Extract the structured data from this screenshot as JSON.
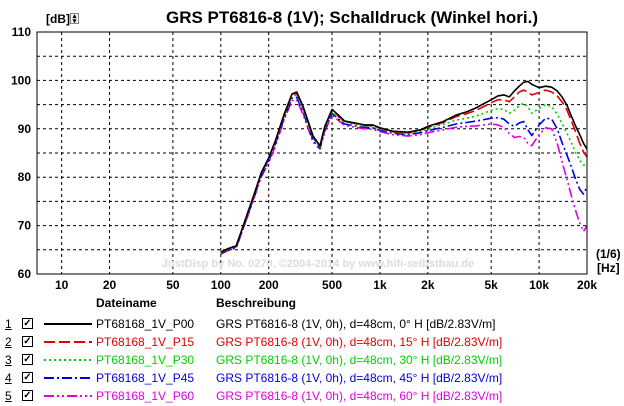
{
  "chart_data": {
    "type": "line",
    "title": "GRS PT6816-8 (1V); Schalldruck (Winkel hori.)",
    "ylabel": "[dB]",
    "xunit_top": "(1/6)",
    "xunit_bottom": "[Hz]",
    "x_scale": "log",
    "xlim": [
      7,
      20000
    ],
    "ylim": [
      60,
      110
    ],
    "y_ticks": [
      60,
      70,
      80,
      90,
      100,
      110
    ],
    "x_ticks": [
      {
        "v": 10,
        "t": "10"
      },
      {
        "v": 20,
        "t": "20"
      },
      {
        "v": 50,
        "t": "50"
      },
      {
        "v": 100,
        "t": "100"
      },
      {
        "v": 200,
        "t": "200"
      },
      {
        "v": 500,
        "t": "500"
      },
      {
        "v": 1000,
        "t": "1k"
      },
      {
        "v": 2000,
        "t": "2k"
      },
      {
        "v": 5000,
        "t": "5k"
      },
      {
        "v": 10000,
        "t": "10k"
      },
      {
        "v": 20000,
        "t": "20k"
      }
    ],
    "grid": true,
    "watermark": "JustDisp by No. 0270, ©2004-2014 by www.hifi-selbstbau.de",
    "legend_headers": {
      "name": "Dateiname",
      "desc": "Beschreibung"
    },
    "x": [
      100,
      110,
      125,
      140,
      160,
      180,
      200,
      220,
      250,
      280,
      300,
      330,
      380,
      420,
      450,
      500,
      550,
      600,
      700,
      800,
      900,
      1000,
      1200,
      1500,
      1800,
      2000,
      2500,
      3000,
      3500,
      4000,
      4500,
      5000,
      5500,
      6000,
      6500,
      7000,
      7500,
      8000,
      8500,
      9000,
      10000,
      11000,
      12000,
      13000,
      14000,
      15000,
      16000,
      17000,
      18000,
      19000,
      20000
    ],
    "series": [
      {
        "index": "1",
        "name": "PT68168_1V_P00",
        "desc": "GRS PT6816-8 (1V, 0h), d=48cm, 0° H [dB/2.83V/m]",
        "color": "#000000",
        "dash": "",
        "values": [
          64.5,
          65.2,
          65.8,
          70.5,
          76.0,
          81.0,
          84.0,
          87.5,
          93.0,
          97.2,
          97.6,
          94.5,
          88.5,
          86.5,
          90.5,
          94.0,
          92.8,
          91.6,
          91.2,
          90.8,
          90.8,
          90.2,
          89.5,
          89.3,
          89.8,
          90.5,
          91.5,
          92.8,
          93.5,
          94.3,
          95.2,
          96.0,
          96.8,
          97.0,
          96.6,
          97.8,
          98.8,
          99.6,
          99.8,
          99.2,
          98.5,
          98.8,
          98.6,
          97.8,
          96.5,
          94.8,
          92.5,
          90.5,
          88.8,
          87.0,
          85.8
        ]
      },
      {
        "index": "2",
        "name": "PT68168_1V_P15",
        "desc": "GRS PT6816-8 (1V, 0h), d=48cm, 15° H [dB/2.83V/m]",
        "color": "#e00000",
        "dash": "11 4",
        "values": [
          64.4,
          65.1,
          65.7,
          70.4,
          75.9,
          80.9,
          83.9,
          87.4,
          92.8,
          97.0,
          97.4,
          94.3,
          88.3,
          86.4,
          90.3,
          93.8,
          92.6,
          91.5,
          91.1,
          90.7,
          90.7,
          90.1,
          89.4,
          89.2,
          89.7,
          90.3,
          91.3,
          92.5,
          93.1,
          93.8,
          94.6,
          95.4,
          96.0,
          96.0,
          95.6,
          96.6,
          97.6,
          98.0,
          97.6,
          97.0,
          97.5,
          98.0,
          97.6,
          96.8,
          95.5,
          93.8,
          91.5,
          89.3,
          87.0,
          85.2,
          84.2
        ]
      },
      {
        "index": "3",
        "name": "PT68168_1V_P30",
        "desc": "GRS PT6816-8 (1V, 0h), d=48cm, 30° H [dB/2.83V/m]",
        "color": "#00d000",
        "dash": "2 3",
        "values": [
          64.3,
          65.0,
          65.6,
          70.2,
          75.7,
          80.7,
          83.6,
          87.1,
          92.5,
          96.7,
          97.0,
          93.8,
          88.0,
          86.2,
          90.0,
          93.5,
          92.3,
          91.2,
          90.8,
          90.5,
          90.5,
          89.9,
          89.3,
          89.0,
          89.5,
          90.0,
          90.9,
          91.8,
          92.2,
          92.6,
          93.2,
          93.8,
          94.2,
          94.0,
          93.2,
          93.8,
          94.8,
          95.3,
          94.5,
          93.2,
          94.2,
          95.0,
          94.6,
          93.0,
          91.0,
          89.0,
          87.0,
          85.0,
          83.5,
          82.5,
          82.5
        ]
      },
      {
        "index": "4",
        "name": "PT68168_1V_P45",
        "desc": "GRS PT6816-8 (1V, 0h), d=48cm, 45° H [dB/2.83V/m]",
        "color": "#0000e0",
        "dash": "10 3 2 3",
        "values": [
          64.2,
          64.9,
          65.5,
          70.0,
          75.5,
          80.4,
          83.3,
          86.8,
          92.2,
          96.3,
          96.5,
          93.3,
          87.6,
          86.0,
          89.7,
          93.2,
          92.0,
          91.0,
          90.6,
          90.3,
          90.2,
          89.7,
          89.1,
          88.8,
          89.2,
          89.6,
          90.3,
          91.0,
          91.3,
          91.6,
          91.9,
          92.2,
          92.3,
          92.0,
          91.0,
          90.5,
          91.2,
          91.5,
          89.8,
          88.6,
          90.8,
          92.2,
          92.0,
          90.0,
          87.0,
          84.5,
          82.0,
          79.5,
          77.5,
          76.5,
          78.0
        ]
      },
      {
        "index": "5",
        "name": "PT68168_1V_P60",
        "desc": "GRS PT6816-8 (1V, 0h), d=48cm, 60° H [dB/2.83V/m]",
        "color": "#e000e0",
        "dash": "10 3 2 3 2 3",
        "values": [
          64.1,
          64.8,
          65.4,
          69.8,
          75.2,
          80.1,
          83.0,
          86.4,
          91.8,
          95.8,
          96.0,
          92.8,
          87.2,
          85.8,
          89.4,
          92.8,
          91.7,
          90.7,
          90.3,
          90.0,
          89.9,
          89.4,
          88.8,
          88.5,
          88.8,
          89.2,
          89.8,
          90.3,
          90.5,
          90.6,
          90.8,
          91.0,
          90.8,
          90.3,
          89.0,
          88.2,
          88.4,
          88.2,
          87.0,
          86.5,
          88.8,
          90.2,
          90.0,
          87.0,
          83.0,
          79.5,
          76.0,
          73.0,
          70.5,
          68.8,
          70.0
        ]
      }
    ]
  }
}
